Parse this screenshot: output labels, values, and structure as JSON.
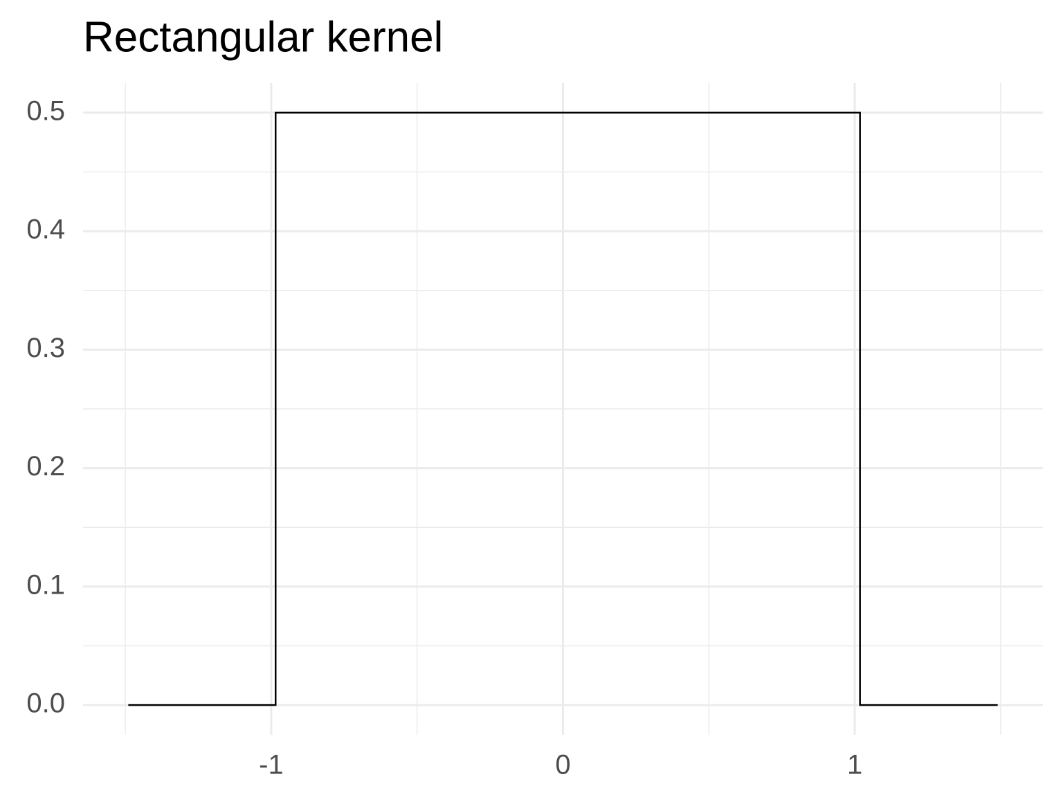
{
  "chart_data": {
    "type": "line",
    "title": "Rectangular kernel",
    "x": [
      -1.49,
      -0.985,
      -0.985,
      1.018,
      1.018,
      1.49
    ],
    "values": [
      0,
      0,
      0.5,
      0.5,
      0,
      0
    ],
    "color": "#000000",
    "xlim": [
      -1.645,
      1.645
    ],
    "xticks": [
      -1,
      0,
      1
    ],
    "x_minor_ticks": [
      -1.5,
      -0.5,
      0.5,
      1.5
    ],
    "ylim": [
      -0.025,
      0.525
    ],
    "yticks": [
      {
        "value": 0,
        "label": "0.0"
      },
      0.1,
      0.2,
      0.3,
      0.4,
      0.5
    ],
    "y_minor_ticks": [
      0.05,
      0.15,
      0.25,
      0.35,
      0.45
    ],
    "grid": true
  }
}
